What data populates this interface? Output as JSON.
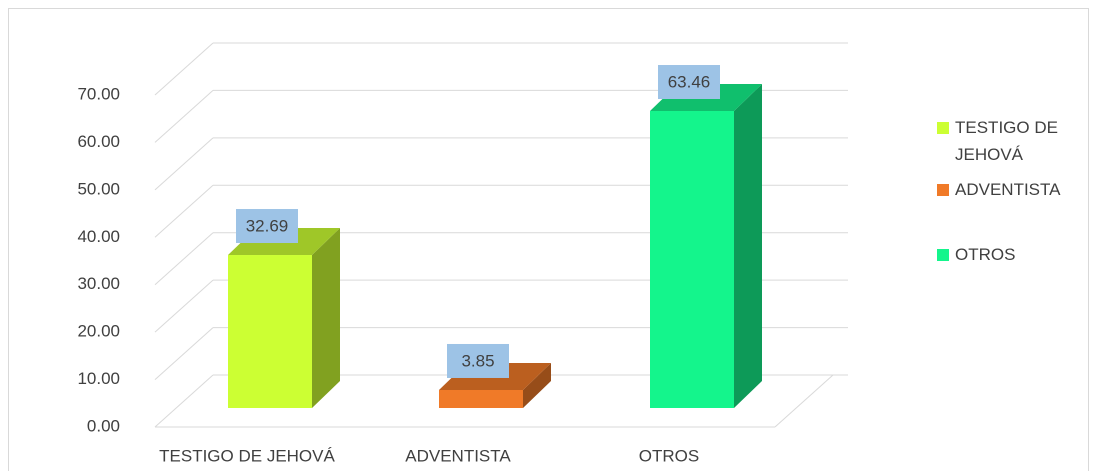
{
  "chart_data": {
    "type": "bar3d",
    "categories": [
      "TESTIGO DE JEHOVÁ",
      "ADVENTISTA",
      "OTROS"
    ],
    "series": [
      {
        "name": "TESTIGO DE JEHOVÁ",
        "color": "#ccff33"
      },
      {
        "name": "ADVENTISTA",
        "color": "#f07a28"
      },
      {
        "name": "OTROS",
        "color": "#14f58c"
      }
    ],
    "values": [
      32.69,
      3.85,
      63.46
    ],
    "ylim": [
      0,
      70
    ],
    "yticks": [
      {
        "value": 0,
        "label": "0.00"
      },
      {
        "value": 10,
        "label": "10.00"
      },
      {
        "value": 20,
        "label": "20.00"
      },
      {
        "value": 30,
        "label": "30.00"
      },
      {
        "value": 40,
        "label": "40.00"
      },
      {
        "value": 50,
        "label": "50.00"
      },
      {
        "value": 60,
        "label": "60.00"
      },
      {
        "value": 70,
        "label": "70.00"
      }
    ],
    "grid": true,
    "legend": "right"
  }
}
